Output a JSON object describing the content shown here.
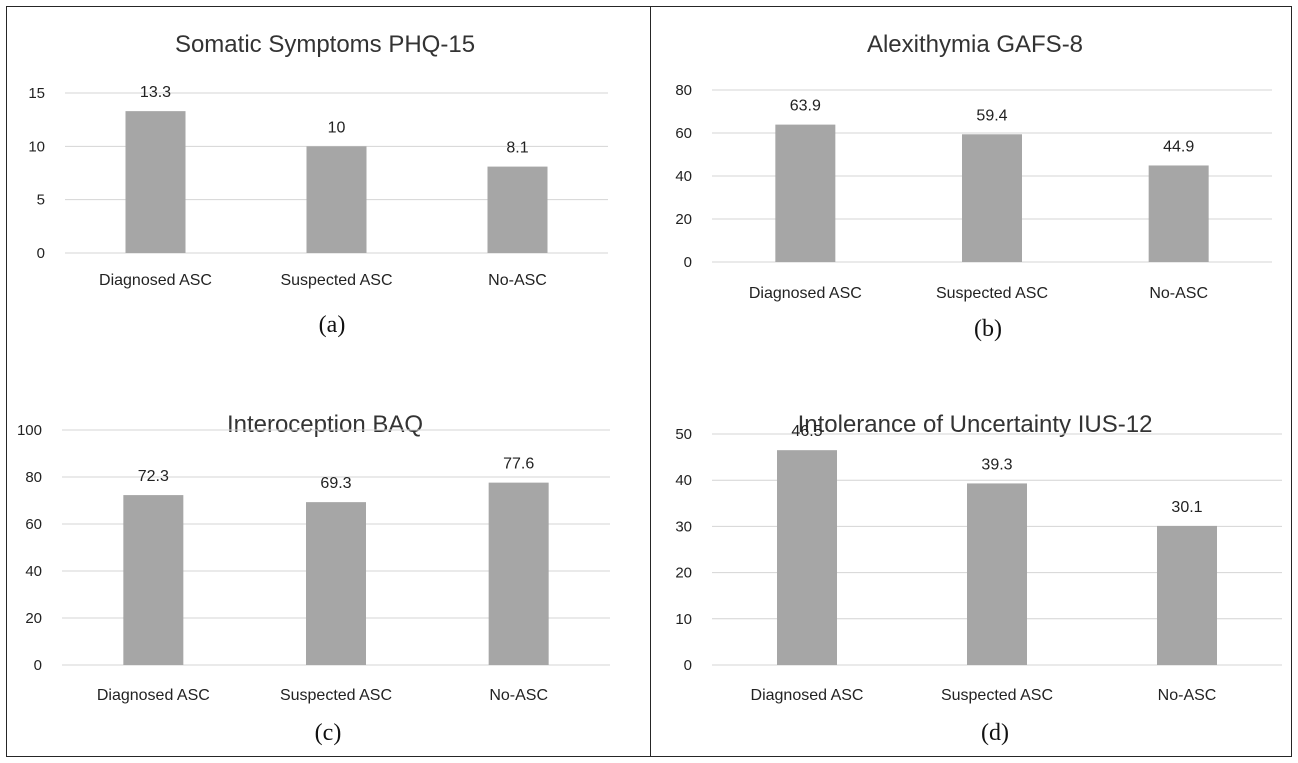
{
  "chart_data": [
    {
      "type": "bar",
      "title": "Somatic Symptoms PHQ-15",
      "caption": "(a)",
      "categories": [
        "Diagnosed ASC",
        "Suspected ASC",
        "No-ASC"
      ],
      "values": [
        13.3,
        10,
        8.1
      ],
      "value_labels": [
        "13.3",
        "10",
        "8.1"
      ],
      "ylim": [
        0,
        15
      ],
      "yticks": [
        0,
        5,
        10,
        15
      ],
      "grid": true,
      "bar_color": "#a6a6a6"
    },
    {
      "type": "bar",
      "title": "Alexithymia GAFS-8",
      "caption": "(b)",
      "categories": [
        "Diagnosed ASC",
        "Suspected ASC",
        "No-ASC"
      ],
      "values": [
        63.9,
        59.4,
        44.9
      ],
      "value_labels": [
        "63.9",
        "59.4",
        "44.9"
      ],
      "ylim": [
        0,
        80
      ],
      "yticks": [
        0,
        20,
        40,
        60,
        80
      ],
      "grid": true,
      "bar_color": "#a6a6a6"
    },
    {
      "type": "bar",
      "title": "Interoception BAQ",
      "caption": "(c)",
      "categories": [
        "Diagnosed ASC",
        "Suspected ASC",
        "No-ASC"
      ],
      "values": [
        72.3,
        69.3,
        77.6
      ],
      "value_labels": [
        "72.3",
        "69.3",
        "77.6"
      ],
      "ylim": [
        0,
        100
      ],
      "yticks": [
        0,
        20,
        40,
        60,
        80,
        100
      ],
      "grid": true,
      "bar_color": "#a6a6a6"
    },
    {
      "type": "bar",
      "title": "Intolerance of Uncertainty IUS-12",
      "caption": "(d)",
      "categories": [
        "Diagnosed ASC",
        "Suspected ASC",
        "No-ASC"
      ],
      "values": [
        46.5,
        39.3,
        30.1
      ],
      "value_labels": [
        "46.5",
        "39.3",
        "30.1"
      ],
      "ylim": [
        0,
        50
      ],
      "yticks": [
        0,
        10,
        20,
        30,
        40,
        50
      ],
      "grid": true,
      "bar_color": "#a6a6a6"
    }
  ]
}
